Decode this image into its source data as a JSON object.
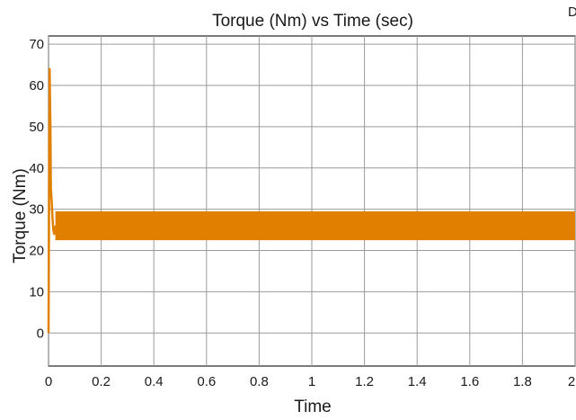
{
  "chart_data": {
    "type": "line",
    "title": "Torque (Nm) vs Time (sec)",
    "xlabel": "Time",
    "ylabel": "Torque (Nm)",
    "xlim": [
      0,
      2
    ],
    "ylim": [
      -8,
      72
    ],
    "xticks": [
      0,
      0.2,
      0.4,
      0.6,
      0.8,
      1,
      1.2,
      1.4,
      1.6,
      1.8,
      2
    ],
    "xtick_labels": [
      "0",
      "0.2",
      "0.4",
      "0.6",
      "0.8",
      "1",
      "1.2",
      "1.4",
      "1.6",
      "1.8",
      "2"
    ],
    "yticks": [
      0,
      10,
      20,
      30,
      40,
      50,
      60,
      70
    ],
    "ytick_labels": [
      "0",
      "10",
      "20",
      "30",
      "40",
      "50",
      "60",
      "70"
    ],
    "grid": true,
    "series": [
      {
        "color": "#e07f00",
        "x": [
          0,
          0.004,
          0.007,
          0.009,
          0.012,
          0.015,
          0.018,
          0.022,
          0.026
        ],
        "y": [
          0,
          64,
          50,
          35,
          32,
          28,
          25,
          24,
          26
        ],
        "steady_state": {
          "from": 0.026,
          "to": 2.0,
          "min": 22.5,
          "max": 29.5
        }
      }
    ],
    "stray_mark": "D"
  }
}
